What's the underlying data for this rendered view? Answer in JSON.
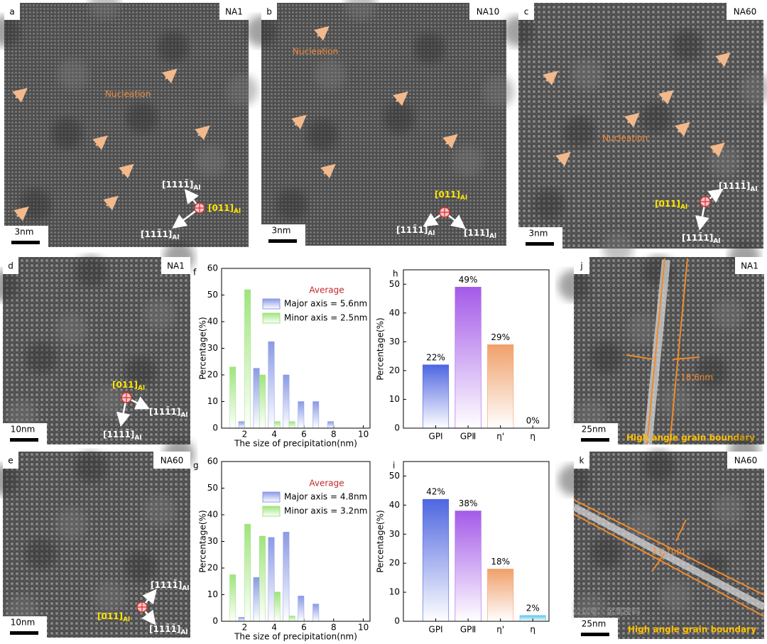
{
  "panels": [
    {
      "label": "a",
      "sample": "NA1",
      "note": "Nucleation",
      "scale": "3nm",
      "zones": [
        {
          "text": "[1111̄]",
          "sub": "Al"
        },
        {
          "text": "[011]",
          "sub": "Al"
        },
        {
          "text": "[111̄1]",
          "sub": "Al"
        }
      ]
    },
    {
      "label": "b",
      "sample": "NA10",
      "note": "Nucleation",
      "scale": "3nm",
      "zones": [
        {
          "text": "[011]",
          "sub": "Al"
        },
        {
          "text": "[111̄1]",
          "sub": "Al"
        },
        {
          "text": "[111]",
          "sub": "Al"
        }
      ]
    },
    {
      "label": "c",
      "sample": "NA60",
      "note": "Nucleation",
      "scale": "3nm",
      "zones": [
        {
          "text": "[1111̄]",
          "sub": "Al"
        },
        {
          "text": "[011]",
          "sub": "Al"
        },
        {
          "text": "[111̄1]",
          "sub": "Al"
        }
      ]
    },
    {
      "label": "d",
      "sample": "NA1",
      "scale": "10nm",
      "zones": [
        {
          "text": "[011]",
          "sub": "Al"
        },
        {
          "text": "[111̄1]",
          "sub": "Al"
        },
        {
          "text": "[1111̄]",
          "sub": "Al"
        }
      ]
    },
    {
      "label": "e",
      "sample": "NA60",
      "scale": "10nm",
      "zones": [
        {
          "text": "[1111̄]",
          "sub": "Al"
        },
        {
          "text": "[011]",
          "sub": "Al"
        },
        {
          "text": "[111̄1̄]",
          "sub": "Al"
        }
      ]
    },
    {
      "label": "j",
      "sample": "NA1",
      "scale": "25nm",
      "measure": "18.6nm",
      "boundary": "High angle grain boundary"
    },
    {
      "label": "k",
      "sample": "NA60",
      "scale": "25nm",
      "measure": "11.7nm",
      "boundary": "High angle grain boundary"
    }
  ],
  "chart_data": [
    {
      "type": "histogram",
      "label": "f",
      "legend_title": "Average",
      "legend": "upper right",
      "x": [
        1,
        2,
        3,
        4,
        5,
        6,
        7,
        8
      ],
      "series": [
        {
          "name": "Major axis  = 5.6nm",
          "color": "#8a9ae6",
          "values": [
            0,
            2.5,
            22.5,
            32.5,
            20,
            10,
            10,
            2.5
          ]
        },
        {
          "name": "Minor axis  = 2.5nm",
          "color": "#9fe47c",
          "values": [
            23,
            52,
            20,
            2.5,
            2.5,
            0,
            0,
            0
          ]
        }
      ],
      "xlim": [
        0.45,
        10.45
      ],
      "xticks": [
        2,
        4,
        6,
        8,
        10
      ],
      "ylim": [
        0,
        60
      ],
      "yticks": [
        0,
        10,
        20,
        30,
        40,
        50,
        60
      ],
      "xlabel": "The size of precipitation(nm)",
      "ylabel": "Percentage(%)"
    },
    {
      "type": "histogram",
      "label": "g",
      "legend_title": "Average",
      "legend": "upper right",
      "x": [
        1,
        2,
        3,
        4,
        5,
        6,
        7,
        8
      ],
      "series": [
        {
          "name": "Major axis  = 4.8nm",
          "color": "#8a9ae6",
          "values": [
            0,
            1.5,
            16.5,
            31.5,
            33.5,
            9.5,
            6.5,
            0
          ]
        },
        {
          "name": "Minor axis  = 3.2nm",
          "color": "#9fe47c",
          "values": [
            17.5,
            36.5,
            32,
            11,
            2,
            0,
            0,
            0
          ]
        }
      ],
      "xlim": [
        0.45,
        10.45
      ],
      "xticks": [
        2,
        4,
        6,
        8,
        10
      ],
      "ylim": [
        0,
        60
      ],
      "yticks": [
        0,
        10,
        20,
        30,
        40,
        50,
        60
      ],
      "xlabel": "The size of precipitation(nm)",
      "ylabel": "Percentage(%)"
    },
    {
      "type": "bar",
      "label": "h",
      "categories": [
        "GPⅠ",
        "GPⅡ",
        "η'",
        "η"
      ],
      "values": [
        22,
        49,
        29,
        0
      ],
      "value_labels": [
        "22%",
        "49%",
        "29%",
        "0%"
      ],
      "colors": [
        "#4f66e0",
        "#a45ae8",
        "#f0a06a",
        "#5ec6ea"
      ],
      "ylim": [
        0,
        55
      ],
      "yticks": [
        0,
        10,
        20,
        30,
        40,
        50
      ],
      "ylabel": "Percentage(%)"
    },
    {
      "type": "bar",
      "label": "i",
      "categories": [
        "GPⅠ",
        "GPⅡ",
        "η'",
        "η"
      ],
      "values": [
        42,
        38,
        18,
        2
      ],
      "value_labels": [
        "42%",
        "38%",
        "18%",
        "2%"
      ],
      "colors": [
        "#4f66e0",
        "#a45ae8",
        "#f0a06a",
        "#5ec6ea"
      ],
      "ylim": [
        0,
        55
      ],
      "yticks": [
        0,
        10,
        20,
        30,
        40,
        50
      ],
      "ylabel": "Percentage(%)"
    }
  ],
  "watermark": "公众号 · 金属密码"
}
